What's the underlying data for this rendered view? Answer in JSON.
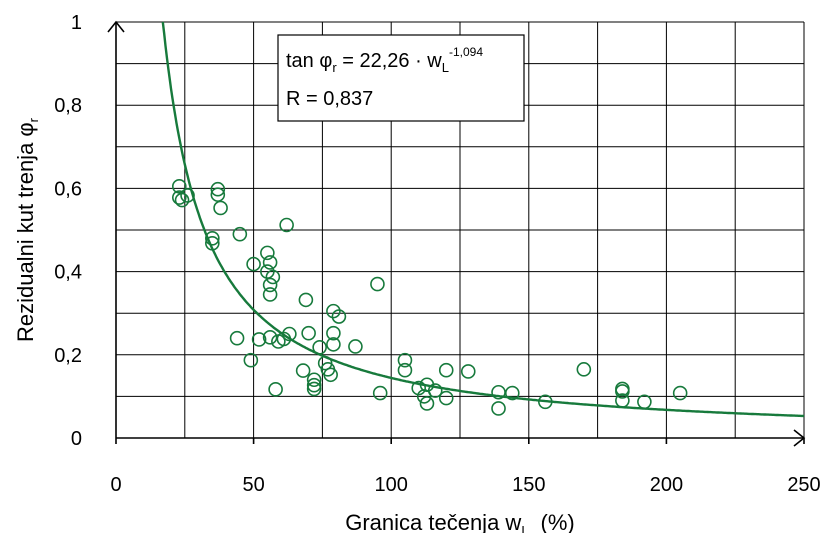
{
  "chart_data": {
    "type": "scatter",
    "title": "",
    "xlabel": "Granica tečenja w",
    "xlabel_sub": "L",
    "xlabel_unit": "(%)",
    "ylabel": "Rezidualni kut trenja φ",
    "ylabel_sub": "r",
    "xlim": [
      0,
      250
    ],
    "ylim": [
      0,
      1
    ],
    "grid": true,
    "x_ticks": [
      "0",
      "50",
      "100",
      "150",
      "200",
      "250"
    ],
    "y_ticks": [
      "0",
      "0,2",
      "0,4",
      "0,6",
      "0,8",
      "1"
    ],
    "colors": {
      "series": "#177a3c",
      "grid": "#000000"
    },
    "annotation": {
      "line1_prefix": "tan φ",
      "line1_sub": "r",
      "line1_mid": " = 22,26 · w",
      "line1_sub2": "L",
      "line1_sup": "-1,094",
      "line2": "R = 0,837"
    },
    "fit": {
      "type": "power",
      "a": 22.26,
      "b": -1.094,
      "x_range": [
        17,
        250
      ]
    },
    "series": [
      {
        "points": [
          [
            23,
            0.605
          ],
          [
            23,
            0.578
          ],
          [
            24,
            0.572
          ],
          [
            26,
            0.583
          ],
          [
            37,
            0.598
          ],
          [
            37,
            0.585
          ],
          [
            38,
            0.553
          ],
          [
            35,
            0.48
          ],
          [
            35,
            0.468
          ],
          [
            45,
            0.49
          ],
          [
            50,
            0.418
          ],
          [
            55,
            0.445
          ],
          [
            56,
            0.422
          ],
          [
            55,
            0.4
          ],
          [
            57,
            0.387
          ],
          [
            56,
            0.368
          ],
          [
            56,
            0.345
          ],
          [
            62,
            0.512
          ],
          [
            69,
            0.332
          ],
          [
            44,
            0.24
          ],
          [
            49,
            0.187
          ],
          [
            52,
            0.237
          ],
          [
            56,
            0.242
          ],
          [
            59,
            0.232
          ],
          [
            61,
            0.238
          ],
          [
            63,
            0.25
          ],
          [
            58,
            0.117
          ],
          [
            68,
            0.162
          ],
          [
            70,
            0.252
          ],
          [
            72,
            0.14
          ],
          [
            72,
            0.127
          ],
          [
            72,
            0.118
          ],
          [
            74,
            0.218
          ],
          [
            76,
            0.18
          ],
          [
            77,
            0.165
          ],
          [
            78,
            0.152
          ],
          [
            79,
            0.305
          ],
          [
            79,
            0.252
          ],
          [
            79,
            0.225
          ],
          [
            81,
            0.292
          ],
          [
            87,
            0.22
          ],
          [
            95,
            0.37
          ],
          [
            96,
            0.108
          ],
          [
            105,
            0.187
          ],
          [
            105,
            0.163
          ],
          [
            110,
            0.12
          ],
          [
            112,
            0.1
          ],
          [
            113,
            0.128
          ],
          [
            113,
            0.083
          ],
          [
            116,
            0.114
          ],
          [
            120,
            0.163
          ],
          [
            120,
            0.096
          ],
          [
            128,
            0.16
          ],
          [
            139,
            0.11
          ],
          [
            139,
            0.071
          ],
          [
            144,
            0.108
          ],
          [
            156,
            0.087
          ],
          [
            170,
            0.165
          ],
          [
            184,
            0.118
          ],
          [
            184,
            0.112
          ],
          [
            184,
            0.09
          ],
          [
            192,
            0.087
          ],
          [
            205,
            0.108
          ]
        ]
      }
    ]
  }
}
